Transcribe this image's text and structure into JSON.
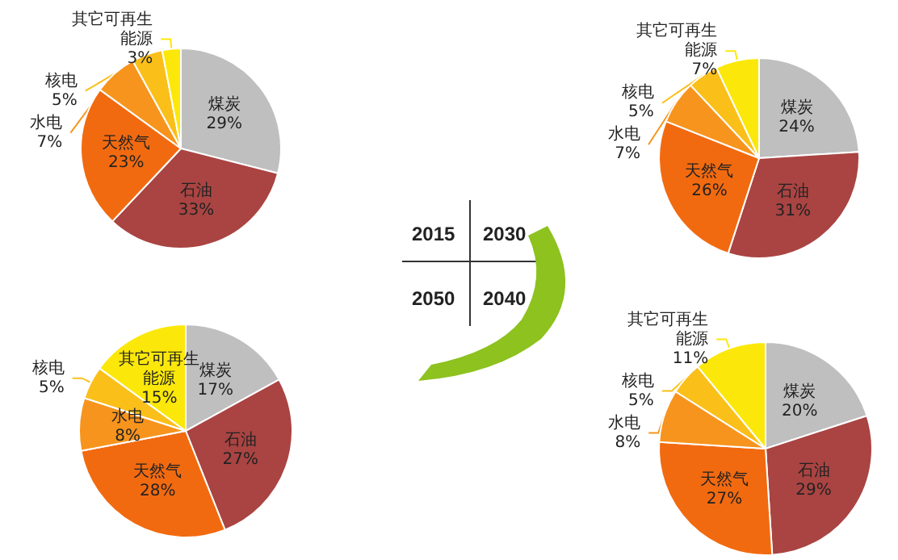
{
  "chart_data": [
    {
      "type": "pie",
      "categories": [
        "煤炭",
        "石油",
        "天然气",
        "水电",
        "核电",
        "其它可再生能源"
      ],
      "values": [
        29,
        33,
        23,
        7,
        5,
        3
      ],
      "value_labels": [
        "29%",
        "33%",
        "23%",
        "7%",
        "5%",
        "3%"
      ],
      "colors": [
        "#bfbfbf",
        "#a94442",
        "#f26a10",
        "#f7941d",
        "#fbbf1a",
        "#fbe80a"
      ]
    },
    {
      "type": "pie",
      "categories": [
        "煤炭",
        "石油",
        "天然气",
        "水电",
        "核电",
        "其它可再生能源"
      ],
      "values": [
        24,
        31,
        26,
        7,
        5,
        7
      ],
      "value_labels": [
        "24%",
        "31%",
        "26%",
        "7%",
        "5%",
        "7%"
      ],
      "colors": [
        "#bfbfbf",
        "#a94442",
        "#f26a10",
        "#f7941d",
        "#fbbf1a",
        "#fbe80a"
      ]
    },
    {
      "type": "other",
      "annotations": [
        "2015",
        "2030",
        "2050",
        "2040"
      ]
    },
    {
      "type": "pie",
      "categories": [
        "煤炭",
        "石油",
        "天然气",
        "水电",
        "核电",
        "其它可再生能源"
      ],
      "values": [
        17,
        27,
        28,
        8,
        5,
        15
      ],
      "value_labels": [
        "17%",
        "27%",
        "28%",
        "8%",
        "5%",
        "15%"
      ],
      "colors": [
        "#bfbfbf",
        "#a94442",
        "#f26a10",
        "#f7941d",
        "#fbbf1a",
        "#fbe80a"
      ]
    },
    {
      "type": "pie",
      "categories": [
        "煤炭",
        "石油",
        "天然气",
        "水电",
        "核电",
        "其它可再生能源"
      ],
      "values": [
        20,
        29,
        27,
        8,
        5,
        11
      ],
      "value_labels": [
        "20%",
        "29%",
        "27%",
        "8%",
        "5%",
        "11%"
      ],
      "colors": [
        "#bfbfbf",
        "#a94442",
        "#f26a10",
        "#f7941d",
        "#fbbf1a",
        "#fbe80a"
      ]
    }
  ]
}
